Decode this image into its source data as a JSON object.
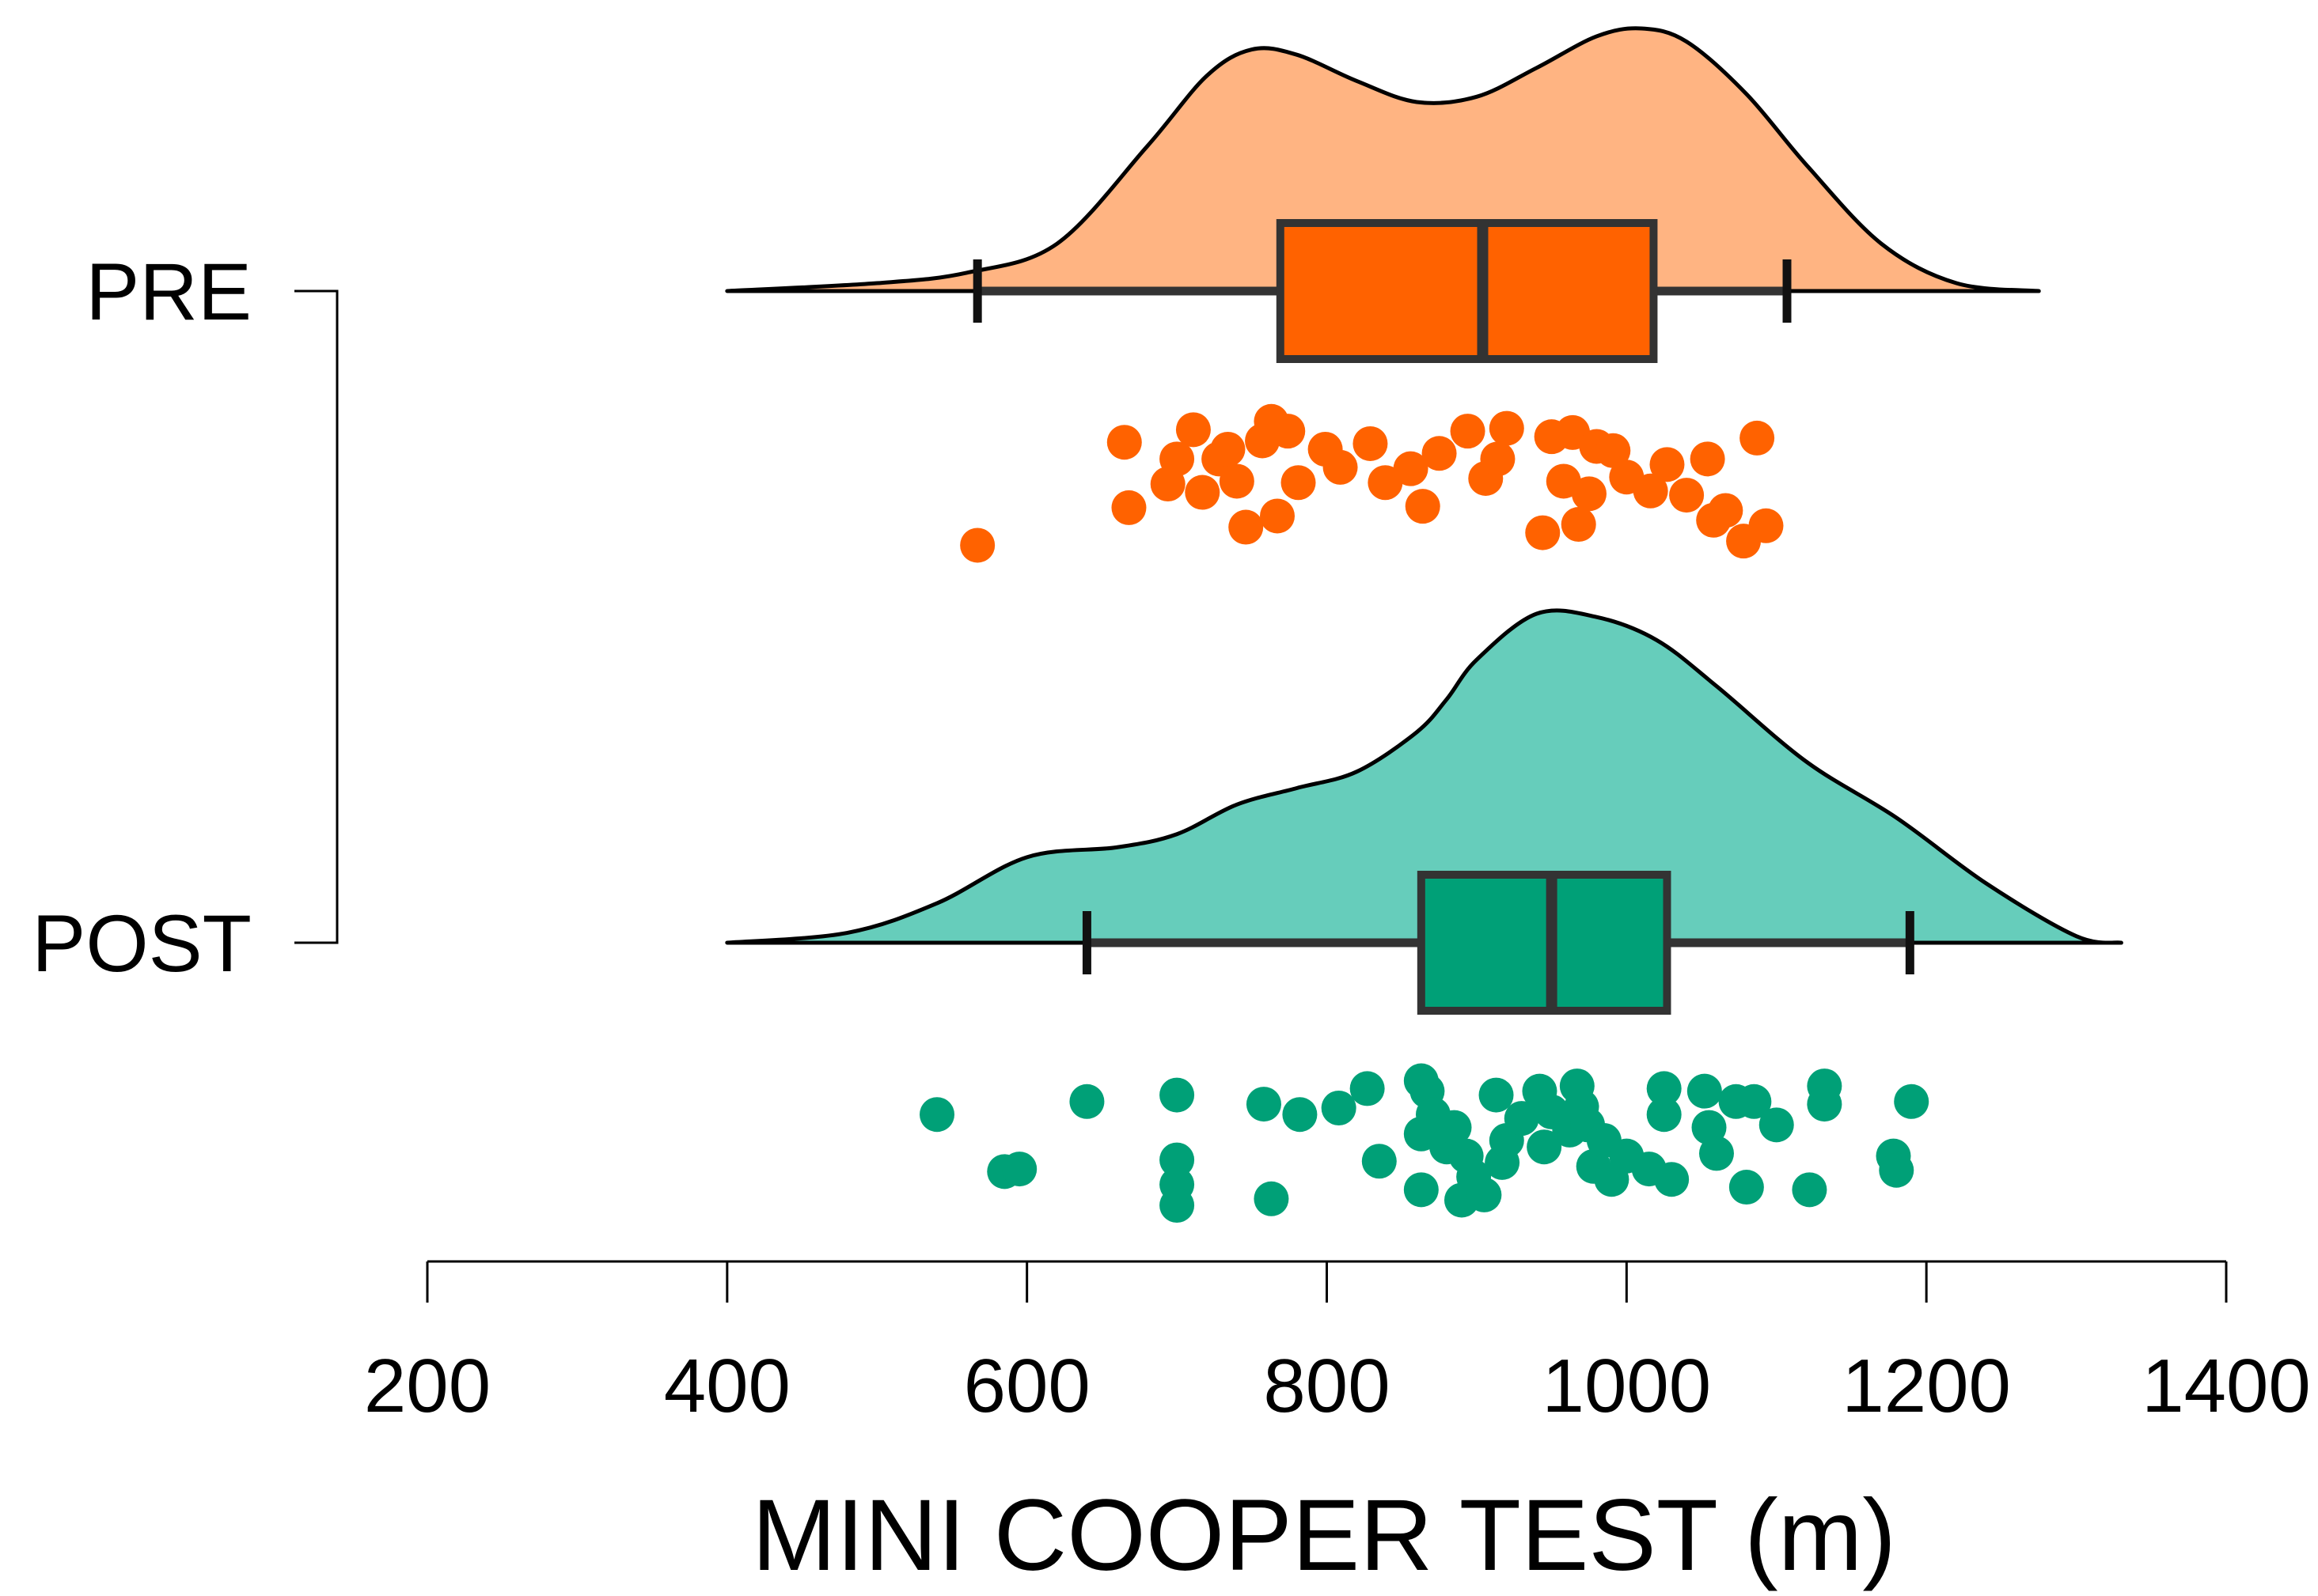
{
  "chart_data": {
    "type": "raincloud",
    "xlabel": "MINI COOPER TEST (m)",
    "xlim": [
      200,
      1400
    ],
    "xticks": [
      200,
      400,
      600,
      800,
      1000,
      1200,
      1400
    ],
    "xtick_labels": [
      "200",
      "400",
      "600",
      "800",
      "1000",
      "1200",
      "1400"
    ],
    "grid": false,
    "legend": "none",
    "paired_bracket": true,
    "groups": [
      {
        "label": "PRE",
        "fill_color": "#FFB482",
        "box_color": "#FF6200",
        "point_color": "#FF6200",
        "box": {
          "whisker_low": 567,
          "q1": 769,
          "median": 904,
          "q3": 1018,
          "whisker_high": 1107
        },
        "density_x": [
          400,
          500,
          560,
          620,
          680,
          720,
          750,
          780,
          820,
          860,
          900,
          940,
          980,
          1010,
          1040,
          1080,
          1120,
          1170,
          1220,
          1275
        ],
        "density_y": [
          0.0,
          0.03,
          0.07,
          0.18,
          0.55,
          0.82,
          0.92,
          0.9,
          0.8,
          0.72,
          0.74,
          0.85,
          0.97,
          1.0,
          0.95,
          0.75,
          0.48,
          0.18,
          0.03,
          0.0
        ],
        "density_range": [
          400,
          1275
        ],
        "points": [
          {
            "x": 567,
            "j": 0.94
          },
          {
            "x": 665,
            "j": 0.2
          },
          {
            "x": 668,
            "j": 0.67
          },
          {
            "x": 694,
            "j": 0.5
          },
          {
            "x": 700,
            "j": 0.32
          },
          {
            "x": 711,
            "j": 0.11
          },
          {
            "x": 717,
            "j": 0.56
          },
          {
            "x": 728,
            "j": 0.32
          },
          {
            "x": 734,
            "j": 0.25
          },
          {
            "x": 740,
            "j": 0.48
          },
          {
            "x": 746,
            "j": 0.81
          },
          {
            "x": 757,
            "j": 0.19
          },
          {
            "x": 763,
            "j": 0.05
          },
          {
            "x": 767,
            "j": 0.73
          },
          {
            "x": 774,
            "j": 0.12
          },
          {
            "x": 781,
            "j": 0.49
          },
          {
            "x": 799,
            "j": 0.25
          },
          {
            "x": 809,
            "j": 0.38
          },
          {
            "x": 829,
            "j": 0.21
          },
          {
            "x": 839,
            "j": 0.49
          },
          {
            "x": 856,
            "j": 0.39
          },
          {
            "x": 864,
            "j": 0.66
          },
          {
            "x": 875,
            "j": 0.28
          },
          {
            "x": 894,
            "j": 0.12
          },
          {
            "x": 906,
            "j": 0.46
          },
          {
            "x": 914,
            "j": 0.32
          },
          {
            "x": 920,
            "j": 0.1
          },
          {
            "x": 944,
            "j": 0.85
          },
          {
            "x": 950,
            "j": 0.16
          },
          {
            "x": 958,
            "j": 0.48
          },
          {
            "x": 964,
            "j": 0.13
          },
          {
            "x": 968,
            "j": 0.79
          },
          {
            "x": 975,
            "j": 0.57
          },
          {
            "x": 980,
            "j": 0.23
          },
          {
            "x": 991,
            "j": 0.26
          },
          {
            "x": 1000,
            "j": 0.45
          },
          {
            "x": 1016,
            "j": 0.55
          },
          {
            "x": 1027,
            "j": 0.36
          },
          {
            "x": 1040,
            "j": 0.58
          },
          {
            "x": 1054,
            "j": 0.32
          },
          {
            "x": 1058,
            "j": 0.76
          },
          {
            "x": 1066,
            "j": 0.69
          },
          {
            "x": 1078,
            "j": 0.91
          },
          {
            "x": 1087,
            "j": 0.17
          },
          {
            "x": 1093,
            "j": 0.8
          }
        ]
      },
      {
        "label": "POST",
        "fill_color": "#66CDBB",
        "box_color": "#00A077",
        "point_color": "#00A077",
        "box": {
          "whisker_low": 640,
          "q1": 863,
          "median": 950,
          "q3": 1027,
          "whisker_high": 1189
        },
        "density_x": [
          400,
          480,
          540,
          600,
          660,
          700,
          740,
          780,
          820,
          860,
          880,
          900,
          940,
          980,
          1020,
          1060,
          1120,
          1180,
          1240,
          1300,
          1330
        ],
        "density_y": [
          0.0,
          0.03,
          0.12,
          0.26,
          0.29,
          0.33,
          0.42,
          0.47,
          0.52,
          0.64,
          0.74,
          0.86,
          1.0,
          0.99,
          0.92,
          0.78,
          0.55,
          0.38,
          0.18,
          0.02,
          0.0
        ],
        "density_range": [
          400,
          1330
        ],
        "points": [
          {
            "x": 540,
            "j": 0.3
          },
          {
            "x": 585,
            "j": 0.74
          },
          {
            "x": 595,
            "j": 0.72
          },
          {
            "x": 640,
            "j": 0.2
          },
          {
            "x": 700,
            "j": 0.15
          },
          {
            "x": 700,
            "j": 0.65
          },
          {
            "x": 700,
            "j": 0.84
          },
          {
            "x": 700,
            "j": 1.0
          },
          {
            "x": 758,
            "j": 0.22
          },
          {
            "x": 763,
            "j": 0.95
          },
          {
            "x": 782,
            "j": 0.3
          },
          {
            "x": 808,
            "j": 0.25
          },
          {
            "x": 827,
            "j": 0.1
          },
          {
            "x": 835,
            "j": 0.66
          },
          {
            "x": 863,
            "j": 0.04
          },
          {
            "x": 863,
            "j": 0.88
          },
          {
            "x": 863,
            "j": 0.45
          },
          {
            "x": 867,
            "j": 0.12
          },
          {
            "x": 871,
            "j": 0.3
          },
          {
            "x": 880,
            "j": 0.55
          },
          {
            "x": 885,
            "j": 0.4
          },
          {
            "x": 890,
            "j": 0.96
          },
          {
            "x": 893,
            "j": 0.62
          },
          {
            "x": 898,
            "j": 0.78
          },
          {
            "x": 905,
            "j": 0.92
          },
          {
            "x": 913,
            "j": 0.15
          },
          {
            "x": 917,
            "j": 0.67
          },
          {
            "x": 920,
            "j": 0.5
          },
          {
            "x": 930,
            "j": 0.33
          },
          {
            "x": 942,
            "j": 0.12
          },
          {
            "x": 945,
            "j": 0.55
          },
          {
            "x": 950,
            "j": 0.28
          },
          {
            "x": 962,
            "j": 0.42
          },
          {
            "x": 967,
            "j": 0.08
          },
          {
            "x": 970,
            "j": 0.24
          },
          {
            "x": 974,
            "j": 0.38
          },
          {
            "x": 978,
            "j": 0.7
          },
          {
            "x": 985,
            "j": 0.5
          },
          {
            "x": 990,
            "j": 0.8
          },
          {
            "x": 1000,
            "j": 0.62
          },
          {
            "x": 1015,
            "j": 0.72
          },
          {
            "x": 1025,
            "j": 0.1
          },
          {
            "x": 1025,
            "j": 0.3
          },
          {
            "x": 1030,
            "j": 0.8
          },
          {
            "x": 1052,
            "j": 0.12
          },
          {
            "x": 1055,
            "j": 0.4
          },
          {
            "x": 1060,
            "j": 0.6
          },
          {
            "x": 1073,
            "j": 0.2
          },
          {
            "x": 1080,
            "j": 0.86
          },
          {
            "x": 1085,
            "j": 0.2
          },
          {
            "x": 1100,
            "j": 0.38
          },
          {
            "x": 1122,
            "j": 0.88
          },
          {
            "x": 1132,
            "j": 0.08
          },
          {
            "x": 1132,
            "j": 0.22
          },
          {
            "x": 1178,
            "j": 0.62
          },
          {
            "x": 1180,
            "j": 0.73
          },
          {
            "x": 1190,
            "j": 0.2
          }
        ]
      }
    ]
  }
}
